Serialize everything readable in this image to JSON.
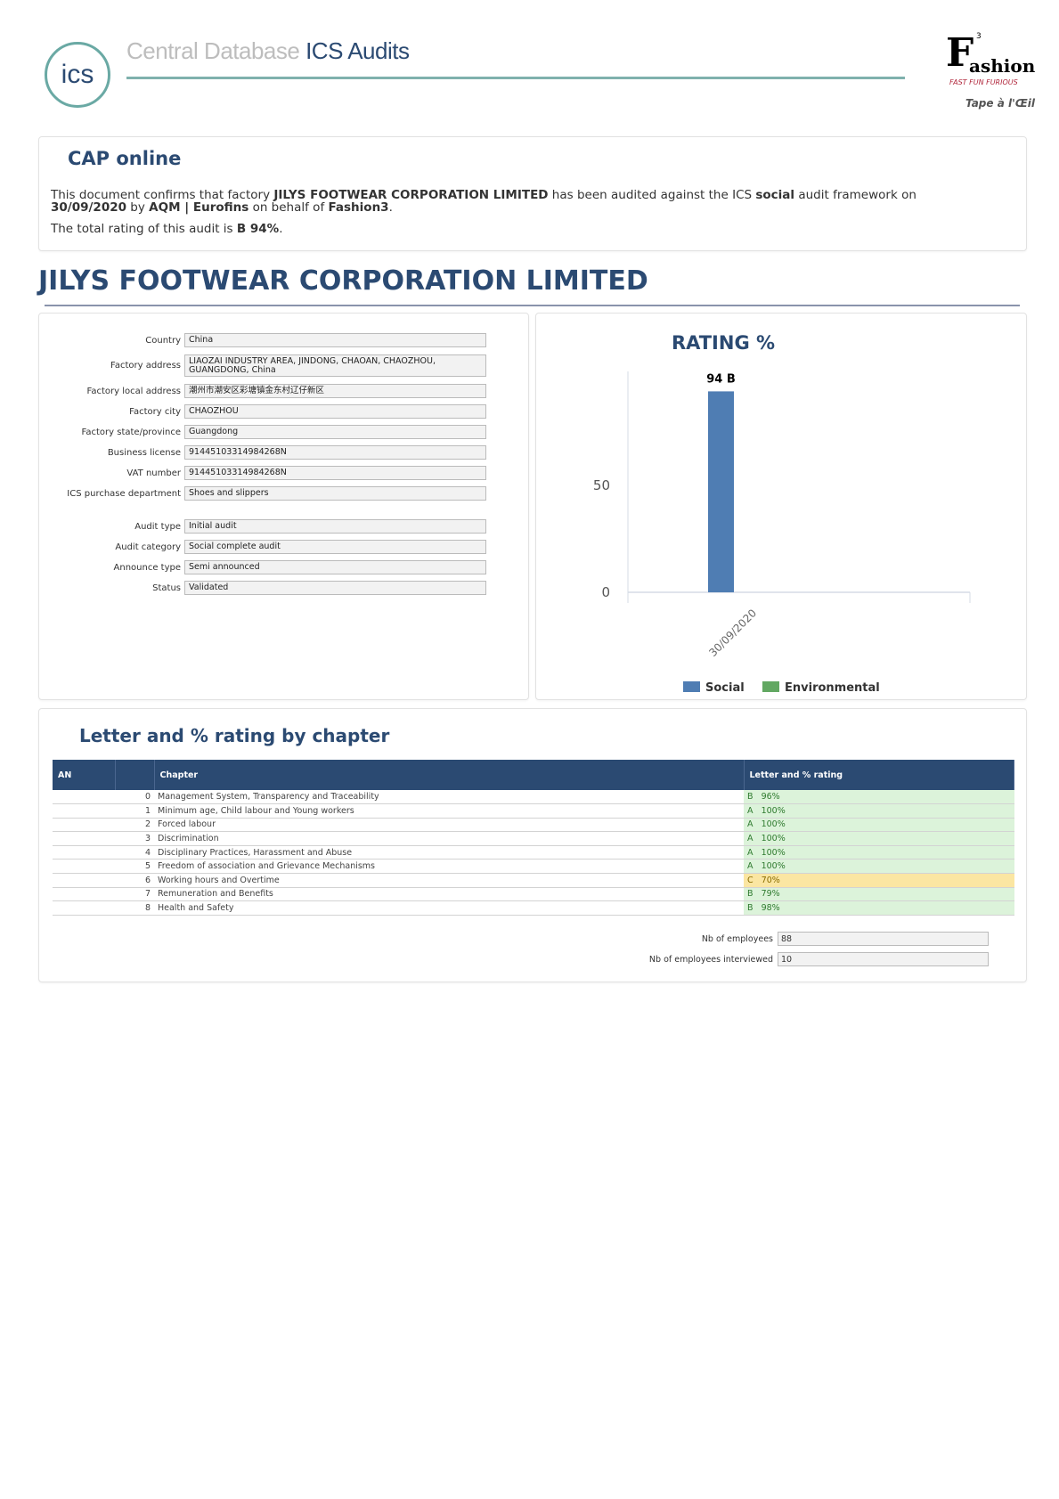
{
  "header": {
    "logo_text": "ics",
    "title_part1": "Central Database",
    "title_part2": "ICS Audits",
    "brand_logo": "F3 Fashion",
    "brand_tagline": "FAST FUN FURIOUS",
    "brand_sup": "3",
    "brand_letter": "F",
    "brand_rest": "ashion",
    "client": "Tape à l'Œil"
  },
  "cap": {
    "heading": "CAP online",
    "l1a": "This document confirms that factory ",
    "factory": "JILYS FOOTWEAR CORPORATION LIMITED",
    "l1b": " has been audited against the ICS ",
    "framework": "social",
    "l1c": " audit framework on ",
    "date": "30/09/2020",
    "l1d": " by ",
    "auditor": "AQM | Eurofins",
    "l1e": " on behalf of ",
    "client": "Fashion3",
    "l1f": ".",
    "l2a": "The total rating of this audit is ",
    "rating": "B 94%",
    "l2b": "."
  },
  "factory_title": "JILYS FOOTWEAR CORPORATION LIMITED",
  "fields": [
    {
      "label": "Country",
      "value": "China"
    },
    {
      "label": "Factory address",
      "value": "LIAOZAI INDUSTRY AREA, JINDONG, CHAOAN, CHAOZHOU, GUANGDONG, China"
    },
    {
      "label": "Factory local address",
      "value": "潮州市潮安区彩塘镇金东村辽仔新区"
    },
    {
      "label": "Factory city",
      "value": "CHAOZHOU"
    },
    {
      "label": "Factory state/province",
      "value": "Guangdong"
    },
    {
      "label": "Business license",
      "value": "91445103314984268N"
    },
    {
      "label": "VAT number",
      "value": "91445103314984268N"
    },
    {
      "label": "ICS purchase department",
      "value": "Shoes and slippers"
    },
    {
      "label": "Audit type",
      "value": "Initial audit"
    },
    {
      "label": "Audit category",
      "value": "Social complete audit"
    },
    {
      "label": "Announce type",
      "value": "Semi announced"
    },
    {
      "label": "Status",
      "value": "Validated"
    }
  ],
  "chart_data": {
    "type": "bar",
    "title": "RATING %",
    "categories": [
      "30/09/2020"
    ],
    "series": [
      {
        "name": "Social",
        "values": [
          94
        ],
        "labels": [
          "94 B"
        ],
        "color": "#4f7db3"
      },
      {
        "name": "Environmental",
        "values": [
          null
        ],
        "color": "#62a862"
      }
    ],
    "yticks": [
      "0",
      "50"
    ],
    "ylim": [
      0,
      100
    ],
    "legend": "bottom"
  },
  "chapters": {
    "heading": "Letter and % rating by chapter",
    "columns": [
      "AN",
      "",
      "Chapter",
      "Letter and % rating"
    ],
    "rows": [
      {
        "n": "0",
        "name": "Management System, Transparency and Traceability",
        "letter": "B",
        "pct": "96%",
        "status": "good"
      },
      {
        "n": "1",
        "name": "Minimum age, Child labour and Young workers",
        "letter": "A",
        "pct": "100%",
        "status": "good"
      },
      {
        "n": "2",
        "name": "Forced labour",
        "letter": "A",
        "pct": "100%",
        "status": "good"
      },
      {
        "n": "3",
        "name": "Discrimination",
        "letter": "A",
        "pct": "100%",
        "status": "good"
      },
      {
        "n": "4",
        "name": "Disciplinary Practices, Harassment and Abuse",
        "letter": "A",
        "pct": "100%",
        "status": "good"
      },
      {
        "n": "5",
        "name": "Freedom of association and Grievance Mechanisms",
        "letter": "A",
        "pct": "100%",
        "status": "good"
      },
      {
        "n": "6",
        "name": "Working hours and Overtime",
        "letter": "C",
        "pct": "70%",
        "status": "warn"
      },
      {
        "n": "7",
        "name": "Remuneration and Benefits",
        "letter": "B",
        "pct": "79%",
        "status": "good"
      },
      {
        "n": "8",
        "name": "Health and Safety",
        "letter": "B",
        "pct": "98%",
        "status": "good"
      }
    ],
    "colors": {
      "good": "#dcf3da",
      "warn": "#fbe6a2"
    }
  },
  "employees": {
    "count_label": "Nb of employees",
    "count": "88",
    "interviewed_label": "Nb of employees interviewed",
    "interviewed": "10"
  }
}
